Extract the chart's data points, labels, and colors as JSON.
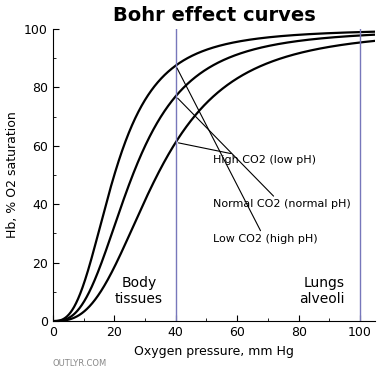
{
  "title": "Bohr effect curves",
  "xlabel": "Oxygen pressure, mm Hg",
  "ylabel": "Hb, % O2 saturation",
  "xlim": [
    0,
    105
  ],
  "ylim": [
    0,
    100
  ],
  "xticks": [
    0,
    20,
    40,
    60,
    80,
    100
  ],
  "yticks": [
    0,
    20,
    40,
    60,
    80,
    100
  ],
  "vline1_x": 40,
  "vline2_x": 100,
  "vline_color": "#7777bb",
  "curve_color": "#000000",
  "background_color": "#ffffff",
  "curves": [
    {
      "p50": 34,
      "n": 2.8,
      "label": "High CO2 (low pH)",
      "point_x": 40,
      "ann_x": 52,
      "ann_y": 55
    },
    {
      "p50": 26,
      "n": 2.8,
      "label": "Normal CO2 (normal pH)",
      "point_x": 40,
      "ann_x": 52,
      "ann_y": 40
    },
    {
      "p50": 20,
      "n": 2.8,
      "label": "Low CO2 (high pH)",
      "point_x": 40,
      "ann_x": 52,
      "ann_y": 28
    }
  ],
  "body_tissues_label": "Body\ntissues",
  "body_tissues_x": 28,
  "body_tissues_y": 5,
  "lungs_alveoli_label": "Lungs\nalveoli",
  "lungs_alveoli_x": 95,
  "lungs_alveoli_y": 5,
  "watermark": "OUTLYR.COM",
  "title_fontsize": 14,
  "axis_fontsize": 9,
  "tick_fontsize": 9,
  "label_fontsize": 10,
  "annotation_fontsize": 8
}
